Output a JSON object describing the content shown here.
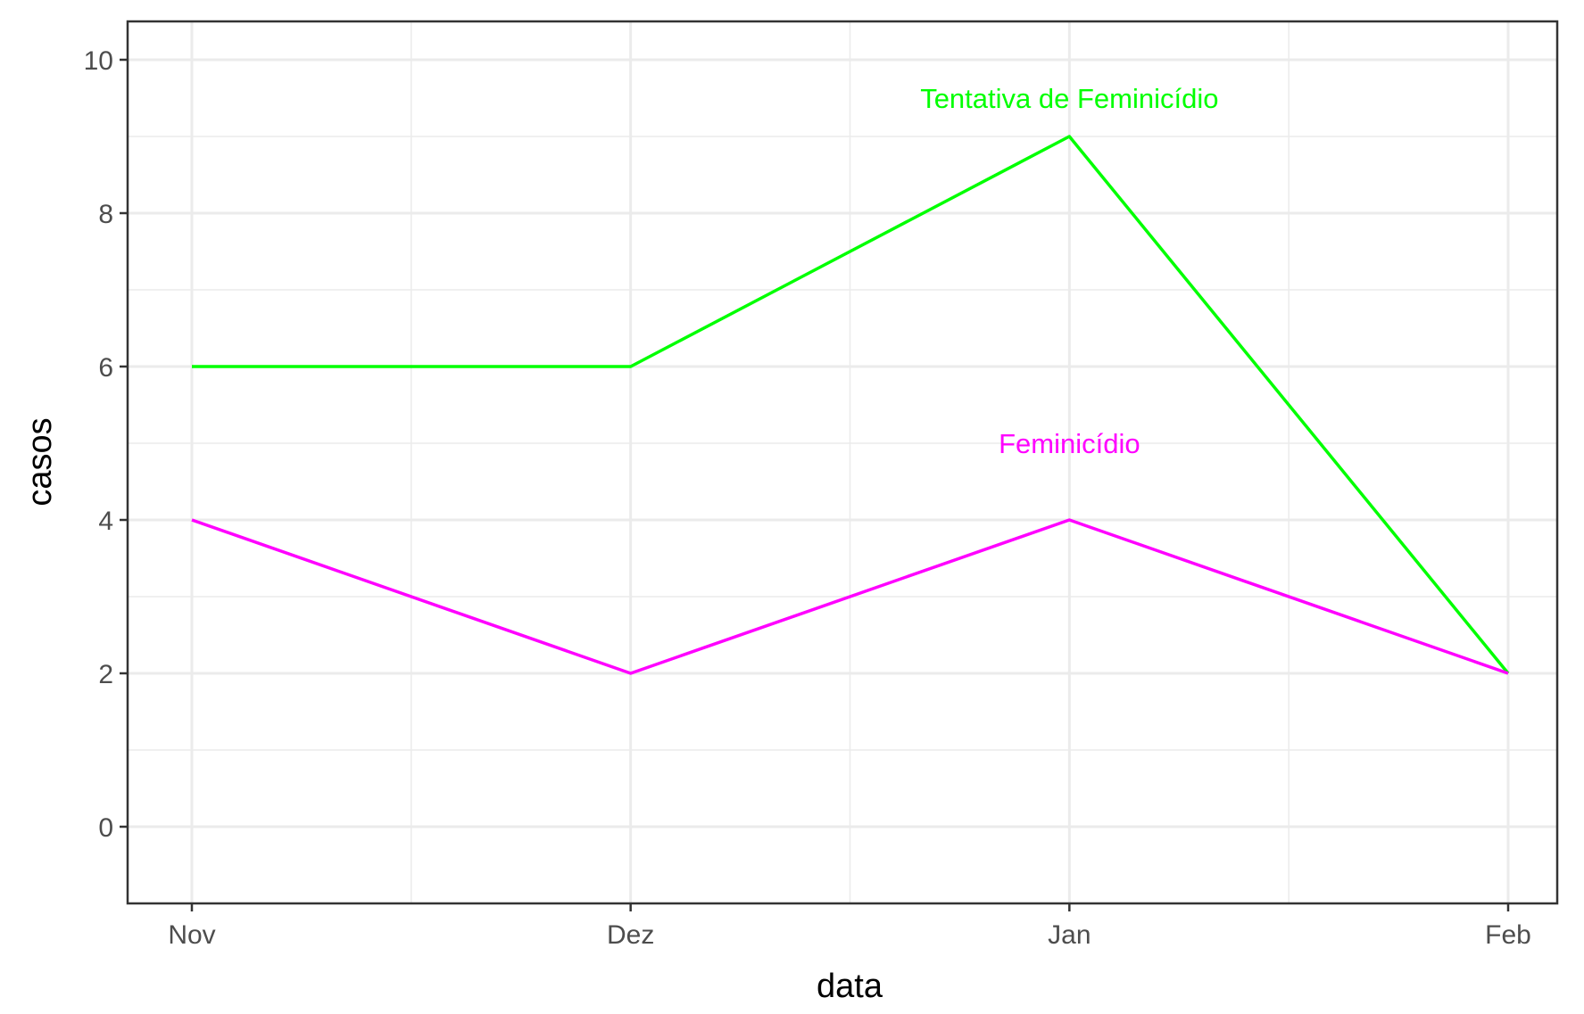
{
  "chart_data": {
    "type": "line",
    "title": "",
    "xlabel": "data",
    "ylabel": "casos",
    "categories": [
      "Nov",
      "Dez",
      "Jan",
      "Feb"
    ],
    "ylim": [
      -1,
      10.5
    ],
    "y_ticks": [
      0,
      2,
      4,
      6,
      8,
      10
    ],
    "y_tick_labels": [
      "0",
      "2",
      "4",
      "6",
      "8",
      "10"
    ],
    "grid": true,
    "legend": "none",
    "series": [
      {
        "name": "Tentativa de Feminicídio",
        "color": "#00FF00",
        "values": [
          6,
          6,
          9,
          2
        ]
      },
      {
        "name": "Feminicídio",
        "color": "#FF00FF",
        "values": [
          4,
          2,
          4,
          2
        ]
      }
    ],
    "annotations": [
      {
        "text": "Tentativa de Feminicídio",
        "x": "Jan",
        "y": 9.5,
        "color": "#00FF00"
      },
      {
        "text": "Feminicídio",
        "x": "Jan",
        "y": 5,
        "color": "#FF00FF"
      }
    ]
  }
}
